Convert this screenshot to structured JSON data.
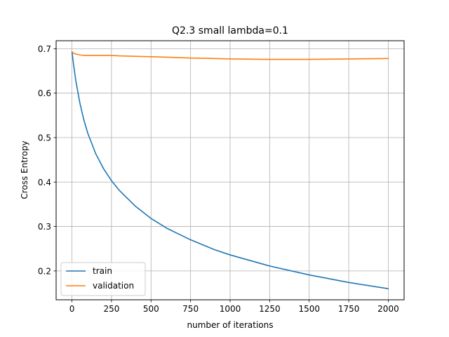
{
  "chart_data": {
    "type": "line",
    "title": "Q2.3 small lambda=0.1",
    "xlabel": "number of iterations",
    "ylabel": "Cross Entropy",
    "xlim": [
      -100,
      2100
    ],
    "ylim": [
      0.135,
      0.718
    ],
    "xticks": [
      0,
      250,
      500,
      750,
      1000,
      1250,
      1500,
      1750,
      2000
    ],
    "yticks": [
      0.2,
      0.3,
      0.4,
      0.5,
      0.6,
      0.7
    ],
    "xtick_labels": [
      "0",
      "250",
      "500",
      "750",
      "1000",
      "1250",
      "1500",
      "1750",
      "2000"
    ],
    "ytick_labels": [
      "0.2",
      "0.3",
      "0.4",
      "0.5",
      "0.6",
      "0.7"
    ],
    "grid": true,
    "legend_position": "lower-left",
    "series": [
      {
        "name": "train",
        "color": "#1f77b4",
        "x": [
          0,
          10,
          25,
          50,
          75,
          100,
          150,
          200,
          250,
          300,
          400,
          500,
          600,
          750,
          900,
          1000,
          1250,
          1500,
          1750,
          2000
        ],
        "y": [
          0.693,
          0.665,
          0.627,
          0.578,
          0.54,
          0.51,
          0.464,
          0.43,
          0.403,
          0.381,
          0.346,
          0.318,
          0.296,
          0.27,
          0.248,
          0.236,
          0.211,
          0.191,
          0.174,
          0.16
        ]
      },
      {
        "name": "validation",
        "color": "#ff7f0e",
        "x": [
          0,
          10,
          25,
          50,
          75,
          100,
          150,
          200,
          250,
          300,
          400,
          500,
          600,
          750,
          900,
          1000,
          1250,
          1500,
          1750,
          2000
        ],
        "y": [
          0.693,
          0.69,
          0.688,
          0.686,
          0.685,
          0.685,
          0.685,
          0.685,
          0.685,
          0.684,
          0.683,
          0.682,
          0.681,
          0.679,
          0.678,
          0.677,
          0.676,
          0.676,
          0.677,
          0.678
        ]
      }
    ]
  }
}
